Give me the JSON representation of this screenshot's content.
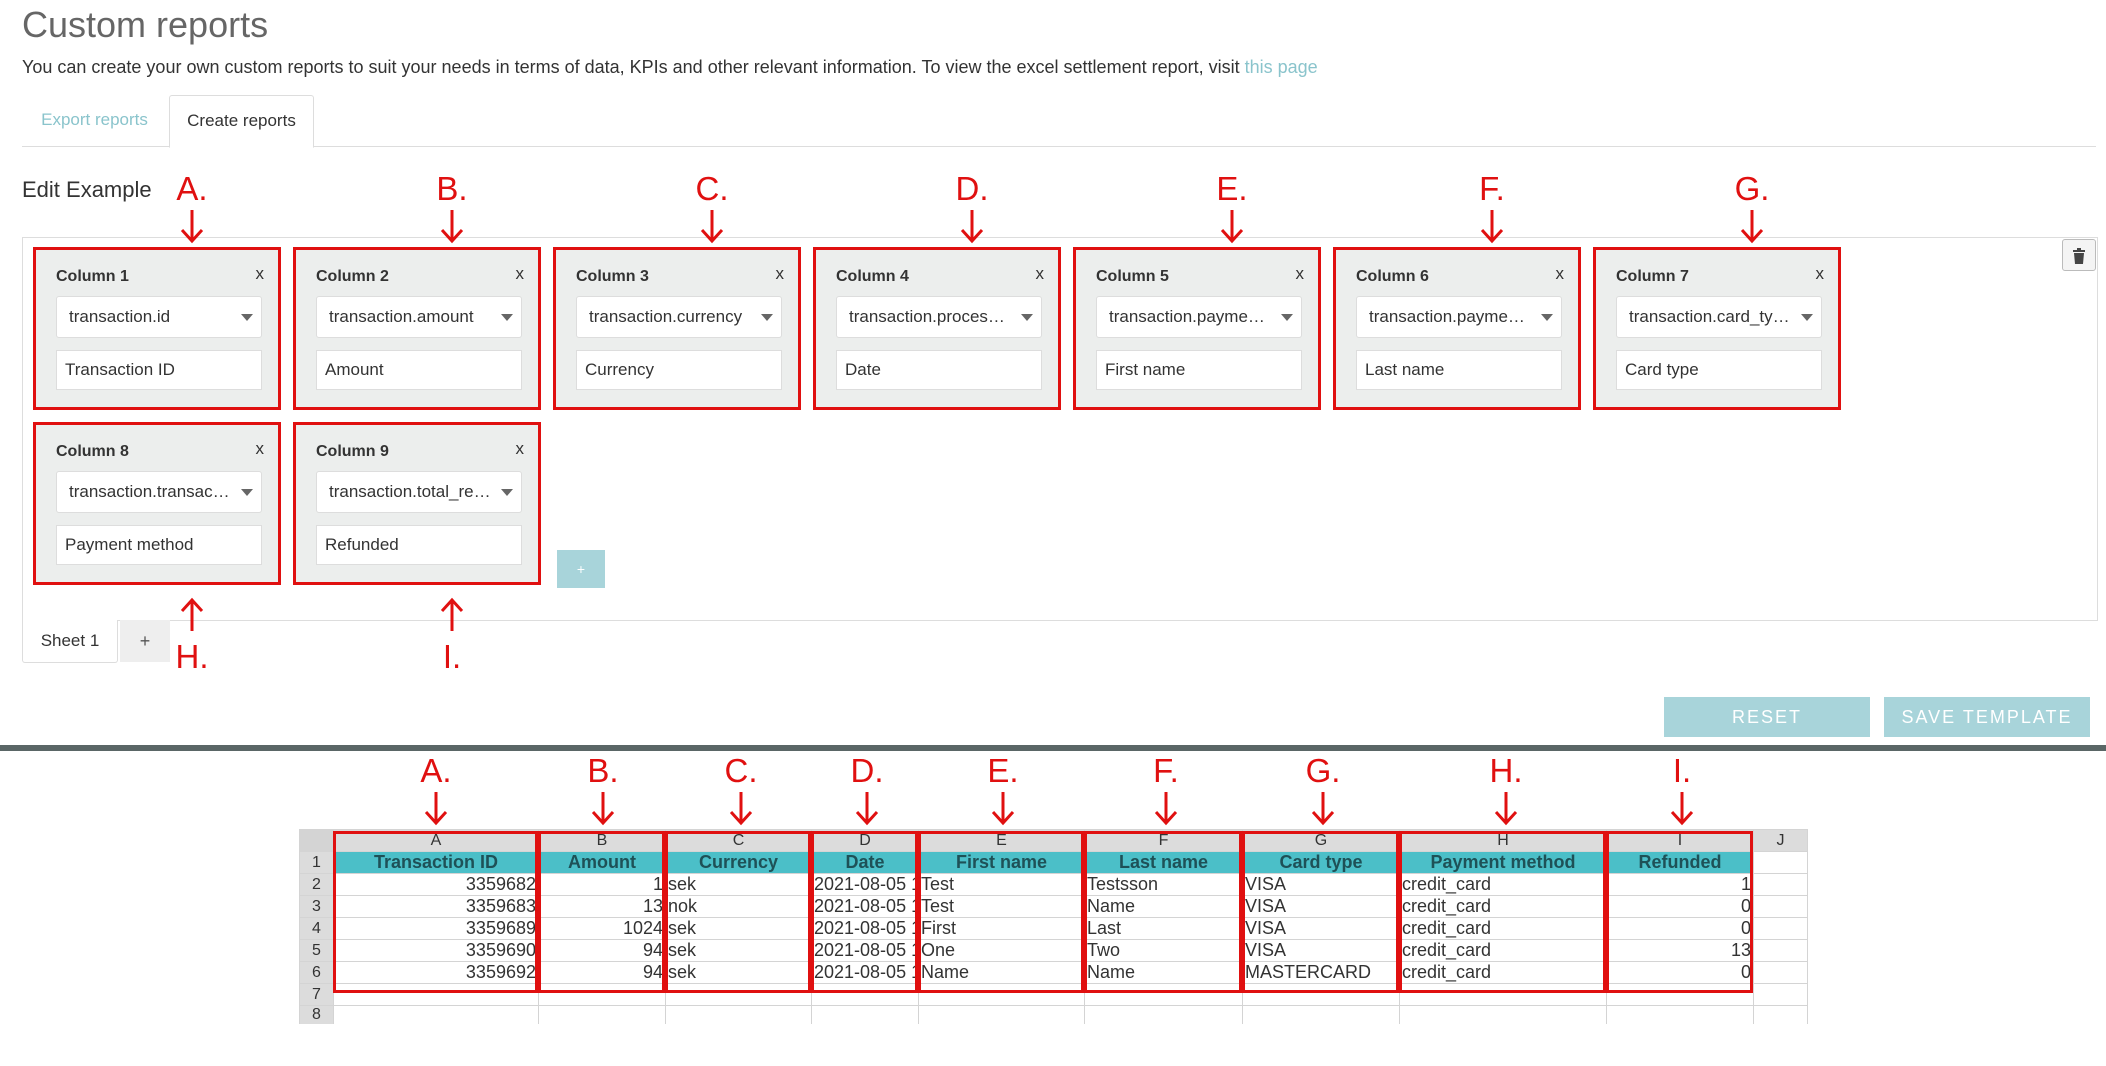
{
  "header": {
    "title": "Custom reports",
    "description": "You can create your own custom reports to suit your needs in terms of data, KPIs and other relevant information. To view the excel settlement report, visit",
    "link_text": "this page"
  },
  "tabs": [
    {
      "label": "Export reports"
    },
    {
      "label": "Create reports"
    }
  ],
  "editor": {
    "title": "Edit Example",
    "add_column_label": "+",
    "columns": [
      {
        "name": "Column 1",
        "field": "transaction.id",
        "label": "Transaction ID",
        "close": "x"
      },
      {
        "name": "Column 2",
        "field": "transaction.amount",
        "label": "Amount",
        "close": "x"
      },
      {
        "name": "Column 3",
        "field": "transaction.currency",
        "label": "Currency",
        "close": "x"
      },
      {
        "name": "Column 4",
        "field": "transaction.processed…",
        "label": "Date",
        "close": "x"
      },
      {
        "name": "Column 5",
        "field": "transaction.payment_…",
        "label": "First name",
        "close": "x"
      },
      {
        "name": "Column 6",
        "field": "transaction.payment_…",
        "label": "Last name",
        "close": "x"
      },
      {
        "name": "Column 7",
        "field": "transaction.card_type",
        "label": "Card type",
        "close": "x"
      },
      {
        "name": "Column 8",
        "field": "transaction.transactio…",
        "label": "Payment method",
        "close": "x"
      },
      {
        "name": "Column 9",
        "field": "transaction.total_refu…",
        "label": "Refunded",
        "close": "x"
      }
    ],
    "sheet_tab": "Sheet 1",
    "add_sheet": "+"
  },
  "buttons": {
    "reset": "RESET",
    "save": "SAVE TEMPLATE"
  },
  "annotations": [
    "A.",
    "B.",
    "C.",
    "D.",
    "E.",
    "F.",
    "G.",
    "H.",
    "I."
  ],
  "annotation_color": "#e01010",
  "accent_color": "#a8d4da",
  "spreadsheet": {
    "col_letters": [
      "A",
      "B",
      "C",
      "D",
      "E",
      "F",
      "G",
      "H",
      "I",
      "J"
    ],
    "row_numbers": [
      "1",
      "2",
      "3",
      "4",
      "5",
      "6",
      "7",
      "8"
    ],
    "headers": [
      "Transaction ID",
      "Amount",
      "Currency",
      "Date",
      "First name",
      "Last name",
      "Card type",
      "Payment method",
      "Refunded"
    ],
    "rows": [
      [
        "3359682",
        "1",
        "sek",
        "2021-08-05 1",
        "Test",
        "Testsson",
        "VISA",
        "credit_card",
        "1"
      ],
      [
        "3359683",
        "13",
        "nok",
        "2021-08-05 1",
        "Test",
        "Name",
        "VISA",
        "credit_card",
        "0"
      ],
      [
        "3359689",
        "1024",
        "sek",
        "2021-08-05 1",
        "First",
        "Last",
        "VISA",
        "credit_card",
        "0"
      ],
      [
        "3359690",
        "94",
        "sek",
        "2021-08-05 1",
        "One",
        "Two",
        "VISA",
        "credit_card",
        "13"
      ],
      [
        "3359692",
        "94",
        "sek",
        "2021-08-05 1",
        "Name",
        "Name",
        "MASTERCARD",
        "credit_card",
        "0"
      ]
    ]
  }
}
